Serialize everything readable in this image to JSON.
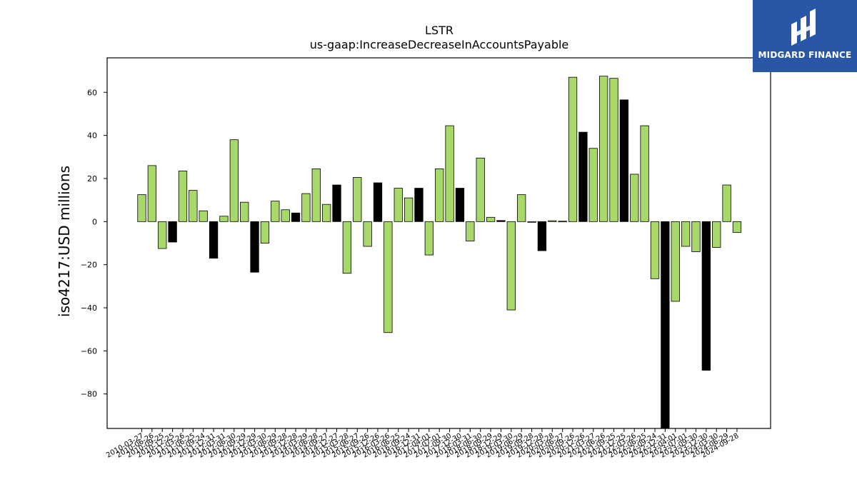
{
  "chart_data": {
    "type": "bar",
    "title": "LSTR",
    "subtitle": "us-gaap:IncreaseDecreaseInAccountsPayable",
    "ylabel": "iso4217:USD  millions",
    "xlabel": "",
    "ylim": [
      -96,
      76
    ],
    "yticks": [
      60,
      40,
      20,
      0,
      -20,
      -40,
      -60,
      -80
    ],
    "grid": false,
    "colors": {
      "positive_q": "#a8d86a",
      "other": "#000000"
    },
    "categories": [
      "2010-03-27",
      "2010-06-26",
      "2010-09-25",
      "2010-12-25",
      "2011-03-26",
      "2011-06-25",
      "2011-09-24",
      "2011-12-31",
      "2012-03-31",
      "2012-06-30",
      "2012-09-29",
      "2012-12-29",
      "2013-03-30",
      "2013-06-29",
      "2013-09-28",
      "2013-12-28",
      "2014-03-29",
      "2014-06-28",
      "2014-09-27",
      "2014-12-27",
      "2015-03-28",
      "2015-06-27",
      "2015-09-26",
      "2015-12-26",
      "2016-03-26",
      "2016-06-25",
      "2016-09-24",
      "2016-12-31",
      "2017-04-01",
      "2017-07-01",
      "2017-09-30",
      "2017-12-30",
      "2018-03-31",
      "2018-06-30",
      "2018-09-29",
      "2018-12-29",
      "2019-03-30",
      "2019-06-29",
      "2019-09-28",
      "2019-12-28",
      "2020-03-28",
      "2020-06-27",
      "2020-09-26",
      "2020-12-26",
      "2021-03-27",
      "2021-06-26",
      "2021-09-25",
      "2021-12-25",
      "2022-03-26",
      "2022-06-25",
      "2022-09-24",
      "2022-12-31",
      "2023-04-01",
      "2023-07-01",
      "2023-09-30",
      "2023-12-30",
      "2024-03-30",
      "2024-06-29",
      "2024-09-28"
    ],
    "values": [
      12.5,
      26,
      -12.5,
      -9.5,
      23.5,
      14.5,
      5,
      -17,
      2.5,
      38,
      9,
      -23.5,
      -10,
      9.5,
      5.5,
      4,
      13,
      24.5,
      8,
      17,
      -24,
      20.5,
      -11.5,
      18,
      -51.5,
      15.5,
      11,
      15.5,
      -15.5,
      24.5,
      44.5,
      15.5,
      -9,
      29.5,
      2,
      0.5,
      -41,
      12.5,
      -0.3,
      -13.5,
      0.4,
      0.2,
      67,
      41.5,
      34,
      67.5,
      66.5,
      56.5,
      22,
      44.5,
      -26.5,
      -96,
      -37,
      -11.5,
      -14,
      -69,
      -12,
      17,
      -5
    ],
    "fill": [
      "positive_q",
      "positive_q",
      "positive_q",
      "other",
      "positive_q",
      "positive_q",
      "positive_q",
      "other",
      "positive_q",
      "positive_q",
      "positive_q",
      "other",
      "positive_q",
      "positive_q",
      "positive_q",
      "other",
      "positive_q",
      "positive_q",
      "positive_q",
      "other",
      "positive_q",
      "positive_q",
      "positive_q",
      "other",
      "positive_q",
      "positive_q",
      "positive_q",
      "other",
      "positive_q",
      "positive_q",
      "positive_q",
      "other",
      "positive_q",
      "positive_q",
      "positive_q",
      "other",
      "positive_q",
      "positive_q",
      "positive_q",
      "other",
      "positive_q",
      "positive_q",
      "positive_q",
      "other",
      "positive_q",
      "positive_q",
      "positive_q",
      "other",
      "positive_q",
      "positive_q",
      "positive_q",
      "other",
      "positive_q",
      "positive_q",
      "positive_q",
      "other",
      "positive_q",
      "positive_q",
      "positive_q"
    ]
  },
  "logo": {
    "text": "MIDGARD FINANCE",
    "icon": "midgard-logo-icon"
  }
}
